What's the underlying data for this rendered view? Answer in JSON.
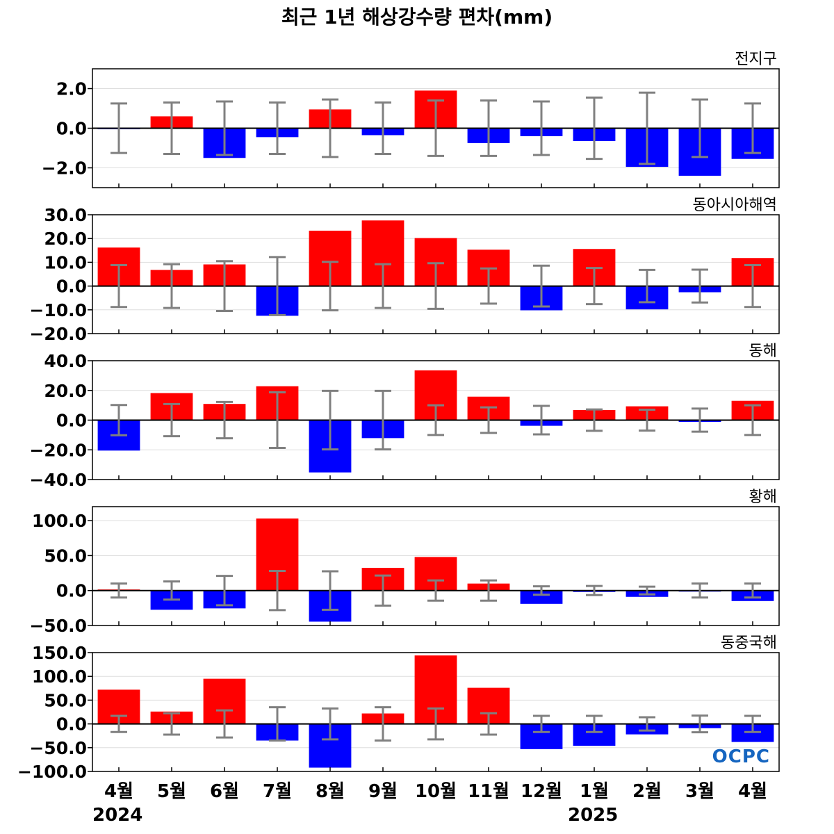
{
  "chart_data": {
    "type": "bar",
    "title": "최근 1년 해상강수량 편차(mm)",
    "categories": [
      "4월",
      "5월",
      "6월",
      "7월",
      "8월",
      "9월",
      "10월",
      "11월",
      "12월",
      "1월",
      "2월",
      "3월",
      "4월"
    ],
    "year_labels": [
      {
        "label": "2024",
        "index": 0
      },
      {
        "label": "2025",
        "index": 9
      }
    ],
    "colors": {
      "positive": "#ff0000",
      "negative": "#0000ff",
      "error_bar": "#808080",
      "zero_line": "#000000",
      "grid": "#dddddd"
    },
    "logo": "OCPC",
    "panels": [
      {
        "name": "전지구",
        "ylim": [
          -3,
          3
        ],
        "yticks": [
          -2,
          0,
          2
        ],
        "ytick_labels": [
          "−2.0",
          "0.0",
          "2.0"
        ],
        "values": [
          -0.05,
          0.6,
          -1.5,
          -0.45,
          0.95,
          -0.35,
          1.9,
          -0.75,
          -0.4,
          -0.65,
          -1.95,
          -2.4,
          -1.55
        ],
        "errors": [
          1.25,
          1.3,
          1.35,
          1.3,
          1.45,
          1.3,
          1.4,
          1.4,
          1.35,
          1.55,
          1.8,
          1.45,
          1.25
        ]
      },
      {
        "name": "동아시아해역",
        "ylim": [
          -20,
          30
        ],
        "yticks": [
          -20,
          -10,
          0,
          10,
          20,
          30
        ],
        "ytick_labels": [
          "−20.0",
          "−10.0",
          "0.0",
          "10.0",
          "20.0",
          "30.0"
        ],
        "values": [
          16.2,
          6.8,
          9.1,
          -12.5,
          23.3,
          27.6,
          20.2,
          15.3,
          -10.2,
          15.6,
          -9.8,
          -2.6,
          11.8
        ],
        "errors": [
          8.8,
          9.2,
          10.5,
          12.2,
          10.2,
          9.2,
          9.6,
          7.4,
          8.6,
          7.6,
          6.8,
          6.9,
          8.8
        ]
      },
      {
        "name": "동해",
        "ylim": [
          -40,
          40
        ],
        "yticks": [
          -40,
          -20,
          0,
          20,
          40
        ],
        "ytick_labels": [
          "−40.0",
          "−20.0",
          "0.0",
          "20.0",
          "40.0"
        ],
        "values": [
          -20.5,
          18.2,
          10.9,
          22.8,
          -35.2,
          -12.1,
          33.5,
          15.8,
          -3.8,
          6.8,
          9.3,
          -1.2,
          13.0
        ],
        "errors": [
          10.2,
          10.8,
          12.2,
          18.7,
          19.7,
          19.7,
          10.0,
          8.6,
          9.6,
          7.2,
          7.0,
          7.8,
          10.0
        ]
      },
      {
        "name": "황해",
        "ylim": [
          -50,
          120
        ],
        "yticks": [
          -50,
          0,
          50,
          100
        ],
        "ytick_labels": [
          "−50.0",
          "0.0",
          "50.0",
          "100.0"
        ],
        "values": [
          1.5,
          -27.5,
          -25.5,
          103.0,
          -44.5,
          32.5,
          48.0,
          10.0,
          -19.0,
          -2.0,
          -9.0,
          -1.0,
          -15.0
        ],
        "errors": [
          10.0,
          13.0,
          21.0,
          28.0,
          27.5,
          21.5,
          14.5,
          14.5,
          6.0,
          6.5,
          5.5,
          10.0,
          10.0
        ]
      },
      {
        "name": "동중국해",
        "ylim": [
          -100,
          150
        ],
        "yticks": [
          -100,
          -50,
          0,
          50,
          100,
          150
        ],
        "ytick_labels": [
          "−100.0",
          "−50.0",
          "0.0",
          "50.0",
          "100.0",
          "150.0"
        ],
        "values": [
          72.0,
          26.0,
          95.0,
          -35.0,
          -92.0,
          22.0,
          144.0,
          76.0,
          -53.0,
          -46.0,
          -22.0,
          -9.0,
          -38.0
        ],
        "errors": [
          17.0,
          22.5,
          28.5,
          35.0,
          32.5,
          35.0,
          32.5,
          22.5,
          17.0,
          17.0,
          14.0,
          17.5,
          17.0
        ]
      }
    ]
  }
}
